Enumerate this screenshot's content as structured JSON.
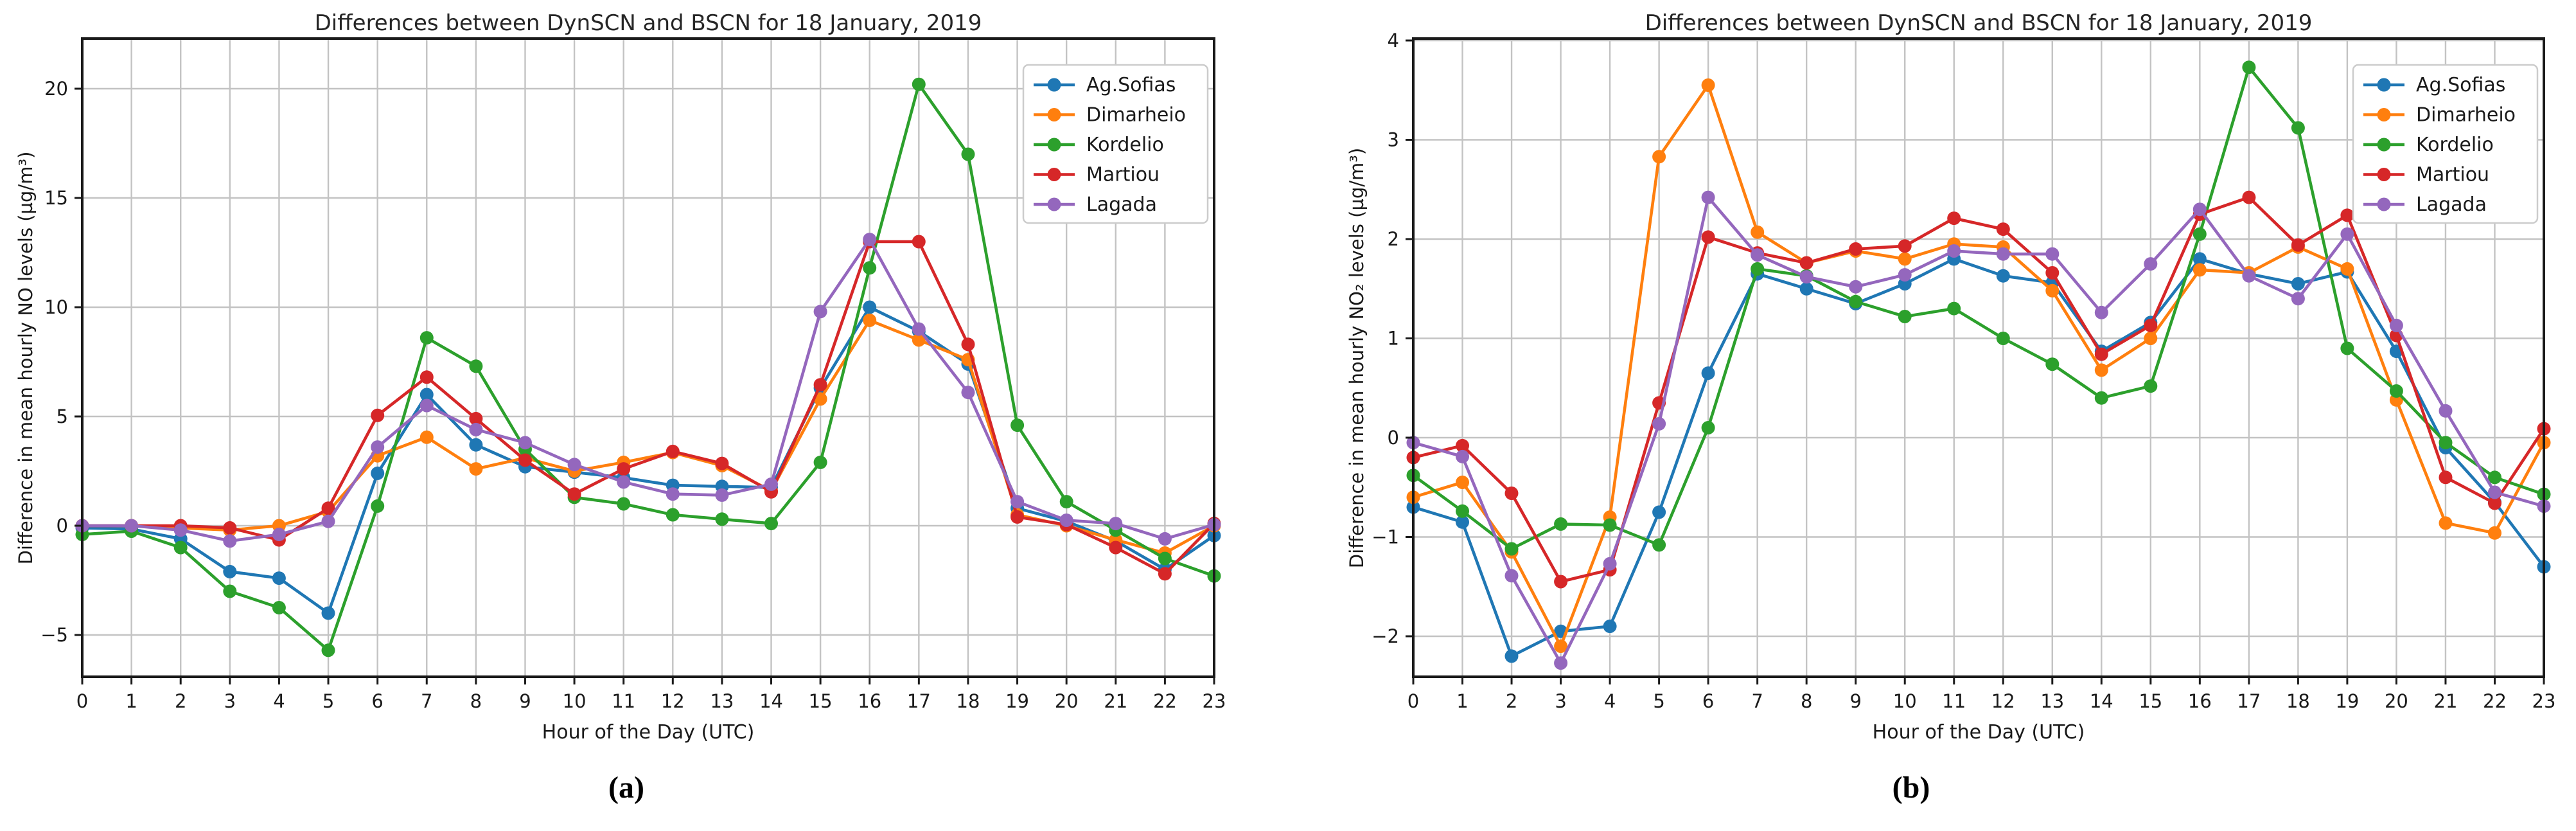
{
  "figure": {
    "captions": {
      "a": "(a)",
      "b": "(b)"
    }
  },
  "chart_data": [
    {
      "id": "a",
      "type": "line",
      "title": "Differences between DynSCN and BSCN for 18 January, 2019",
      "xlabel": "Hour of the Day (UTC)",
      "ylabel": "Difference in mean hourly NO levels (µg/m³)",
      "x": [
        0,
        1,
        2,
        3,
        4,
        5,
        6,
        7,
        8,
        9,
        10,
        11,
        12,
        13,
        14,
        15,
        16,
        17,
        18,
        19,
        20,
        21,
        22,
        23
      ],
      "xlim": [
        0,
        23
      ],
      "ylim": [
        -6.9,
        22.3
      ],
      "yticks": [
        20,
        15,
        10,
        5,
        0,
        -5
      ],
      "grid": true,
      "legend_position": "upper right",
      "series": [
        {
          "name": "Ag.Sofias",
          "color": "#1f77b4",
          "values": [
            -0.1,
            -0.15,
            -0.6,
            -2.1,
            -2.4,
            -4.0,
            2.4,
            6.0,
            3.7,
            2.7,
            2.45,
            2.2,
            1.85,
            1.8,
            1.75,
            6.3,
            10.0,
            8.9,
            7.4,
            0.8,
            0.2,
            -0.7,
            -2.0,
            -0.45
          ]
        },
        {
          "name": "Dimarheio",
          "color": "#ff7f0e",
          "values": [
            0.0,
            0.0,
            -0.1,
            -0.2,
            0.0,
            0.65,
            3.2,
            4.05,
            2.6,
            3.1,
            2.5,
            2.9,
            3.35,
            2.75,
            1.6,
            5.8,
            9.4,
            8.5,
            7.6,
            0.5,
            0.0,
            -0.65,
            -1.25,
            0.0
          ]
        },
        {
          "name": "Kordelio",
          "color": "#2ca02c",
          "values": [
            -0.4,
            -0.25,
            -1.0,
            -3.0,
            -3.75,
            -5.7,
            0.9,
            8.6,
            7.3,
            3.5,
            1.3,
            1.0,
            0.5,
            0.3,
            0.1,
            2.9,
            11.8,
            20.2,
            17.0,
            4.6,
            1.1,
            -0.2,
            -1.5,
            -2.3
          ]
        },
        {
          "name": "Martiou",
          "color": "#d62728",
          "values": [
            0.0,
            0.0,
            0.0,
            -0.1,
            -0.65,
            0.8,
            5.05,
            6.8,
            4.9,
            3.0,
            1.45,
            2.6,
            3.4,
            2.85,
            1.55,
            6.45,
            13.0,
            13.0,
            8.3,
            0.4,
            0.05,
            -1.0,
            -2.2,
            0.1
          ]
        },
        {
          "name": "Lagada",
          "color": "#9467bd",
          "values": [
            0.0,
            0.0,
            -0.2,
            -0.7,
            -0.4,
            0.2,
            3.6,
            5.5,
            4.4,
            3.8,
            2.8,
            2.0,
            1.45,
            1.4,
            1.9,
            9.8,
            13.1,
            9.0,
            6.1,
            1.1,
            0.25,
            0.1,
            -0.6,
            0.05
          ]
        }
      ]
    },
    {
      "id": "b",
      "type": "line",
      "title": "Differences between DynSCN and BSCN for 18 January, 2019",
      "xlabel": "Hour of the Day (UTC)",
      "ylabel": "Difference in mean hourly NO₂ levels (µg/m³)",
      "x": [
        0,
        1,
        2,
        3,
        4,
        5,
        6,
        7,
        8,
        9,
        10,
        11,
        12,
        13,
        14,
        15,
        16,
        17,
        18,
        19,
        20,
        21,
        22,
        23
      ],
      "xlim": [
        0,
        23
      ],
      "ylim": [
        -2.4,
        4.0
      ],
      "yticks": [
        4,
        3,
        2,
        1,
        0,
        -1,
        -2
      ],
      "grid": true,
      "legend_position": "upper right",
      "series": [
        {
          "name": "Ag.Sofias",
          "color": "#1f77b4",
          "values": [
            -0.7,
            -0.85,
            -2.2,
            -1.95,
            -1.9,
            -0.75,
            0.65,
            1.65,
            1.5,
            1.35,
            1.55,
            1.8,
            1.63,
            1.56,
            0.87,
            1.16,
            1.8,
            1.65,
            1.55,
            1.67,
            0.87,
            -0.1,
            -0.65,
            -1.3
          ]
        },
        {
          "name": "Dimarheio",
          "color": "#ff7f0e",
          "values": [
            -0.6,
            -0.45,
            -1.15,
            -2.1,
            -0.8,
            2.83,
            3.55,
            2.07,
            1.76,
            1.88,
            1.8,
            1.95,
            1.92,
            1.48,
            0.68,
            1.0,
            1.69,
            1.66,
            1.92,
            1.7,
            0.38,
            -0.86,
            -0.96,
            -0.05
          ]
        },
        {
          "name": "Kordelio",
          "color": "#2ca02c",
          "values": [
            -0.38,
            -0.74,
            -1.12,
            -0.87,
            -0.88,
            -1.08,
            0.1,
            1.7,
            1.63,
            1.37,
            1.22,
            1.3,
            1.0,
            0.74,
            0.4,
            0.52,
            2.05,
            3.73,
            3.12,
            0.9,
            0.47,
            -0.05,
            -0.4,
            -0.57
          ]
        },
        {
          "name": "Martiou",
          "color": "#d62728",
          "values": [
            -0.2,
            -0.08,
            -0.56,
            -1.45,
            -1.33,
            0.35,
            2.02,
            1.86,
            1.76,
            1.9,
            1.93,
            2.21,
            2.1,
            1.66,
            0.84,
            1.13,
            2.25,
            2.42,
            1.94,
            2.24,
            1.03,
            -0.4,
            -0.66,
            0.09
          ]
        },
        {
          "name": "Lagada",
          "color": "#9467bd",
          "values": [
            -0.05,
            -0.19,
            -1.39,
            -2.27,
            -1.27,
            0.14,
            2.42,
            1.84,
            1.62,
            1.52,
            1.64,
            1.88,
            1.85,
            1.85,
            1.26,
            1.75,
            2.3,
            1.63,
            1.4,
            2.05,
            1.13,
            0.27,
            -0.55,
            -0.69
          ]
        }
      ]
    }
  ]
}
